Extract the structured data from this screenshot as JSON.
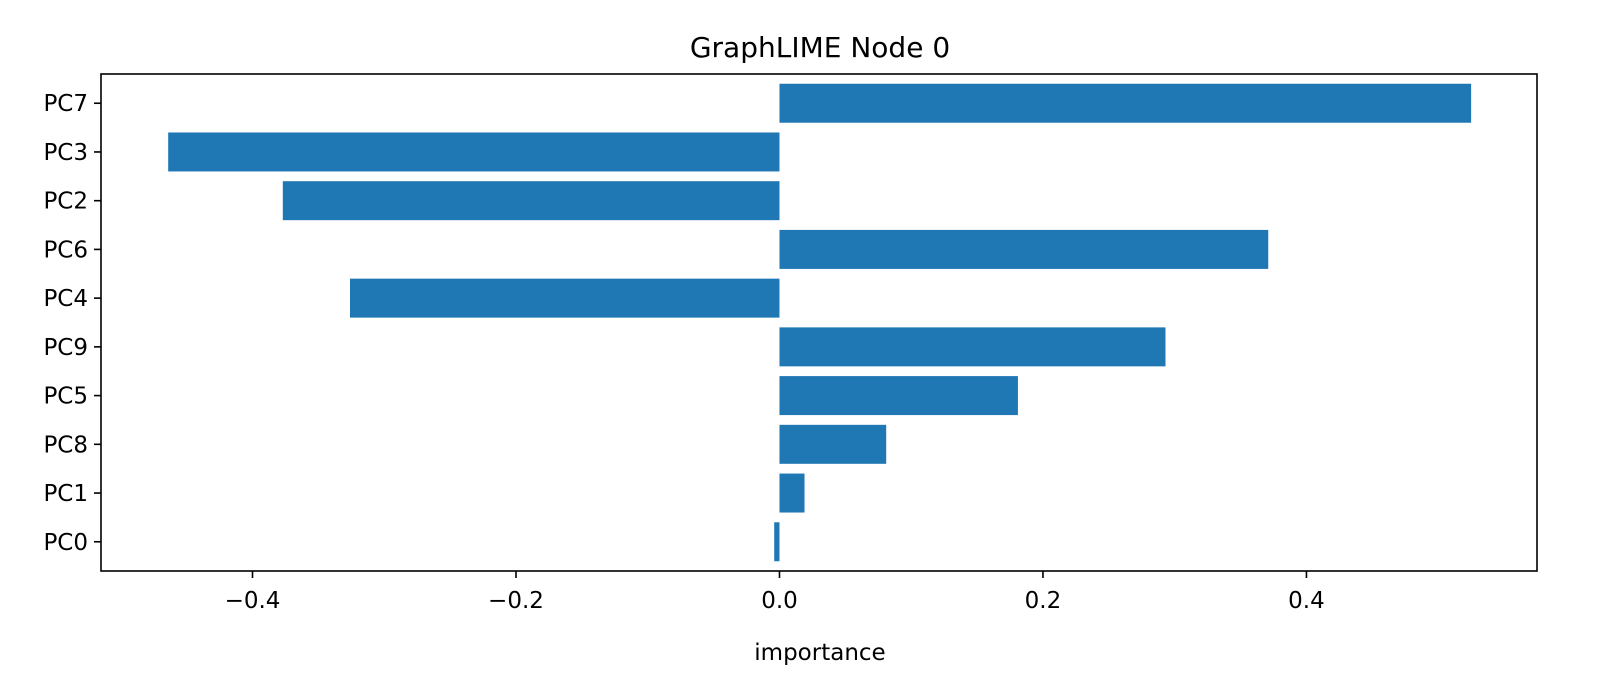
{
  "chart_data": {
    "type": "bar",
    "orientation": "horizontal",
    "title": "GraphLIME Node 0",
    "xlabel": "importance",
    "ylabel": "",
    "categories": [
      "PC7",
      "PC3",
      "PC2",
      "PC6",
      "PC4",
      "PC9",
      "PC5",
      "PC8",
      "PC1",
      "PC0"
    ],
    "values": [
      0.525,
      -0.464,
      -0.377,
      0.371,
      -0.326,
      0.293,
      0.181,
      0.081,
      0.019,
      -0.004
    ],
    "xlim": [
      -0.515,
      0.575
    ],
    "xticks": [
      -0.4,
      -0.2,
      0.0,
      0.2,
      0.4
    ],
    "xtick_labels": [
      "−0.4",
      "−0.2",
      "0.0",
      "0.2",
      "0.4"
    ],
    "bar_color": "#1f77b4",
    "grid": false,
    "legend": false
  }
}
